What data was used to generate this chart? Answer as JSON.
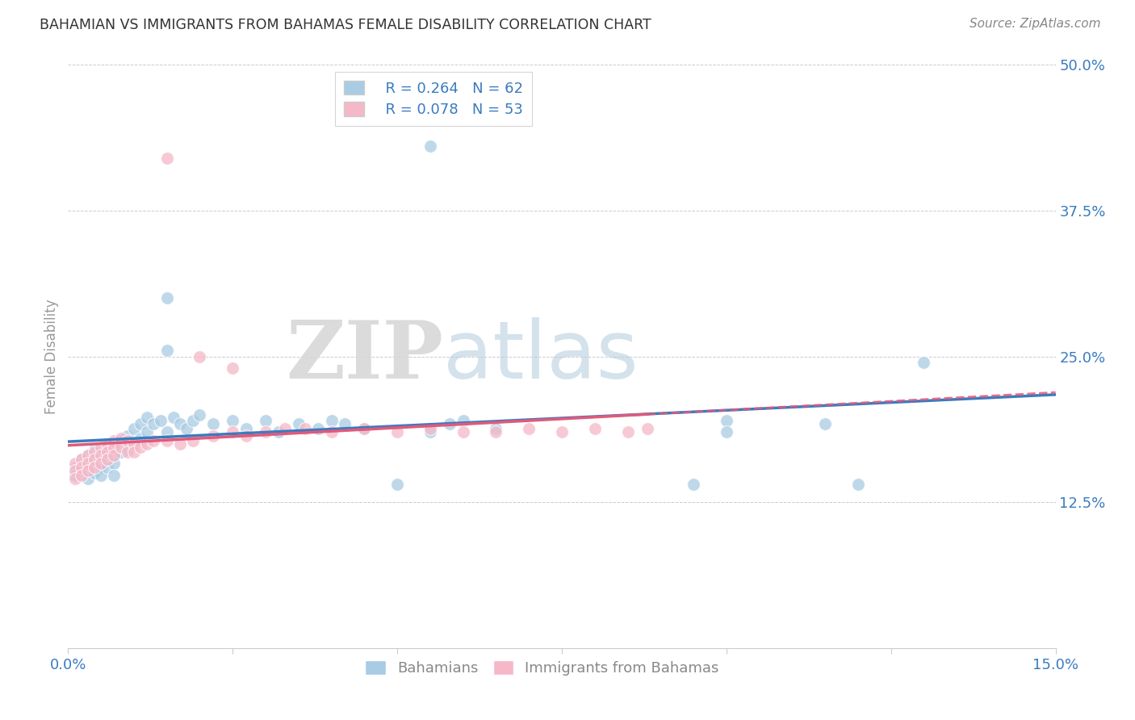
{
  "title": "BAHAMIAN VS IMMIGRANTS FROM BAHAMAS FEMALE DISABILITY CORRELATION CHART",
  "source": "Source: ZipAtlas.com",
  "ylabel": "Female Disability",
  "yticks": [
    0.0,
    0.125,
    0.25,
    0.375,
    0.5
  ],
  "ytick_labels": [
    "",
    "12.5%",
    "25.0%",
    "37.5%",
    "50.0%"
  ],
  "xticks": [
    0.0,
    0.025,
    0.05,
    0.075,
    0.1,
    0.125,
    0.15
  ],
  "xtick_labels": [
    "0.0%",
    "",
    "",
    "",
    "",
    "",
    "15.0%"
  ],
  "xlim": [
    0.0,
    0.15
  ],
  "ylim": [
    0.0,
    0.5
  ],
  "legend_R1": "R = 0.264",
  "legend_N1": "N = 62",
  "legend_R2": "R = 0.078",
  "legend_N2": "N = 53",
  "color_blue": "#a8cce4",
  "color_pink": "#f5b8c8",
  "color_blue_line": "#3a7bbf",
  "color_pink_line": "#e05a7a",
  "color_text_blue": "#3a7bbf",
  "watermark_zip": "ZIP",
  "watermark_atlas": "atlas",
  "bahamians_x": [
    0.001,
    0.001,
    0.002,
    0.002,
    0.003,
    0.003,
    0.003,
    0.004,
    0.004,
    0.004,
    0.005,
    0.005,
    0.005,
    0.006,
    0.006,
    0.006,
    0.007,
    0.007,
    0.007,
    0.007,
    0.008,
    0.008,
    0.009,
    0.009,
    0.01,
    0.01,
    0.011,
    0.011,
    0.012,
    0.012,
    0.013,
    0.014,
    0.015,
    0.016,
    0.017,
    0.018,
    0.019,
    0.02,
    0.022,
    0.025,
    0.027,
    0.03,
    0.032,
    0.035,
    0.038,
    0.04,
    0.042,
    0.045,
    0.05,
    0.055,
    0.058,
    0.06,
    0.065,
    0.055,
    0.095,
    0.1,
    0.1,
    0.115,
    0.12,
    0.13,
    0.015,
    0.015
  ],
  "bahamians_y": [
    0.155,
    0.148,
    0.162,
    0.152,
    0.165,
    0.158,
    0.145,
    0.17,
    0.16,
    0.15,
    0.168,
    0.155,
    0.148,
    0.172,
    0.162,
    0.155,
    0.175,
    0.165,
    0.158,
    0.148,
    0.178,
    0.168,
    0.182,
    0.17,
    0.188,
    0.175,
    0.192,
    0.18,
    0.198,
    0.185,
    0.192,
    0.195,
    0.185,
    0.198,
    0.192,
    0.188,
    0.195,
    0.2,
    0.192,
    0.195,
    0.188,
    0.195,
    0.185,
    0.192,
    0.188,
    0.195,
    0.192,
    0.188,
    0.14,
    0.185,
    0.192,
    0.195,
    0.188,
    0.43,
    0.14,
    0.195,
    0.185,
    0.192,
    0.14,
    0.245,
    0.3,
    0.255
  ],
  "immigrants_x": [
    0.001,
    0.001,
    0.001,
    0.002,
    0.002,
    0.002,
    0.003,
    0.003,
    0.003,
    0.004,
    0.004,
    0.004,
    0.005,
    0.005,
    0.005,
    0.006,
    0.006,
    0.006,
    0.007,
    0.007,
    0.007,
    0.008,
    0.008,
    0.009,
    0.009,
    0.01,
    0.01,
    0.011,
    0.012,
    0.013,
    0.015,
    0.017,
    0.019,
    0.022,
    0.025,
    0.027,
    0.03,
    0.033,
    0.036,
    0.04,
    0.045,
    0.05,
    0.055,
    0.06,
    0.065,
    0.07,
    0.075,
    0.08,
    0.085,
    0.088,
    0.015,
    0.02,
    0.025
  ],
  "immigrants_y": [
    0.158,
    0.152,
    0.145,
    0.162,
    0.155,
    0.148,
    0.165,
    0.158,
    0.152,
    0.168,
    0.162,
    0.155,
    0.172,
    0.165,
    0.158,
    0.175,
    0.168,
    0.162,
    0.178,
    0.172,
    0.165,
    0.18,
    0.172,
    0.178,
    0.168,
    0.175,
    0.168,
    0.172,
    0.175,
    0.178,
    0.178,
    0.175,
    0.178,
    0.182,
    0.185,
    0.182,
    0.185,
    0.188,
    0.188,
    0.185,
    0.188,
    0.185,
    0.188,
    0.185,
    0.185,
    0.188,
    0.185,
    0.188,
    0.185,
    0.188,
    0.42,
    0.25,
    0.24
  ]
}
